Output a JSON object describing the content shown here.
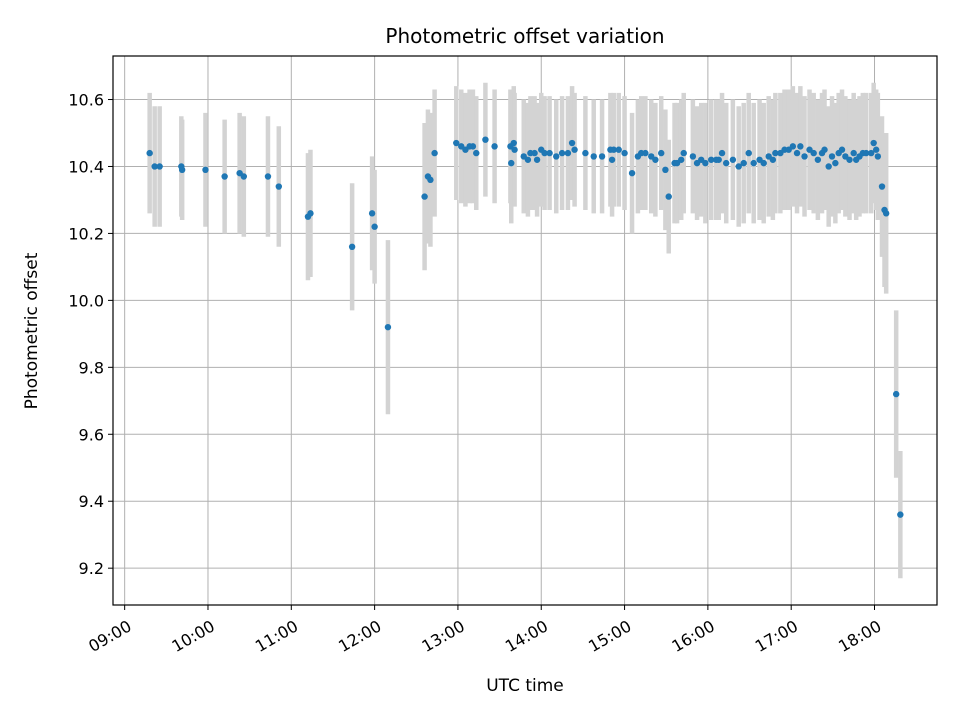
{
  "chart_data": {
    "type": "scatter",
    "title": "Photometric offset variation",
    "xlabel": "UTC time",
    "ylabel": "Photometric offset",
    "x_unit": "hours UTC",
    "xlim": [
      8.86,
      18.75
    ],
    "ylim": [
      9.09,
      10.73
    ],
    "xticks": [
      9,
      10,
      11,
      12,
      13,
      14,
      15,
      16,
      17,
      18
    ],
    "xtick_labels": [
      "09:00",
      "10:00",
      "11:00",
      "12:00",
      "13:00",
      "14:00",
      "15:00",
      "16:00",
      "17:00",
      "18:00"
    ],
    "yticks": [
      9.2,
      9.4,
      9.6,
      9.8,
      10.0,
      10.2,
      10.4,
      10.6
    ],
    "ytick_labels": [
      "9.2",
      "9.4",
      "9.6",
      "9.8",
      "10.0",
      "10.2",
      "10.4",
      "10.6"
    ],
    "grid": true,
    "colors": {
      "marker": "#1f77b4",
      "errorbar": "#d3d3d3",
      "grid": "#b0b0b0"
    },
    "series": [
      {
        "x": [
          9.3,
          9.36,
          9.42,
          9.68,
          9.69,
          9.97,
          10.2,
          10.38,
          10.43,
          10.72,
          10.85,
          11.2,
          11.23,
          11.73,
          11.97,
          12.0,
          12.16,
          12.6,
          12.64,
          12.67,
          12.72,
          12.98,
          13.04,
          13.09,
          13.14,
          13.18,
          13.22,
          13.33,
          13.44,
          13.63,
          13.64,
          13.67,
          13.68,
          13.79,
          13.84,
          13.87,
          13.92,
          13.95,
          14.0,
          14.04,
          14.1,
          14.18,
          14.25,
          14.32,
          14.37,
          14.4,
          14.53,
          14.63,
          14.73,
          14.83,
          14.85,
          14.87,
          14.93,
          15.0,
          15.09,
          15.16,
          15.2,
          15.25,
          15.32,
          15.37,
          15.44,
          15.49,
          15.53,
          15.6,
          15.63,
          15.68,
          15.71,
          15.82,
          15.87,
          15.92,
          15.97,
          16.04,
          16.1,
          16.13,
          16.17,
          16.22,
          16.3,
          16.37,
          16.43,
          16.49,
          16.55,
          16.62,
          16.67,
          16.73,
          16.78,
          16.81,
          16.87,
          16.92,
          16.97,
          17.02,
          17.07,
          17.11,
          17.16,
          17.22,
          17.27,
          17.32,
          17.37,
          17.4,
          17.45,
          17.49,
          17.53,
          17.57,
          17.61,
          17.65,
          17.7,
          17.75,
          17.78,
          17.82,
          17.86,
          17.9,
          17.96,
          17.99,
          18.02,
          18.04,
          18.09,
          18.12,
          18.14,
          18.26,
          18.31
        ],
        "y": [
          10.44,
          10.4,
          10.4,
          10.4,
          10.39,
          10.39,
          10.37,
          10.38,
          10.37,
          10.37,
          10.34,
          10.25,
          10.26,
          10.16,
          10.26,
          10.22,
          9.92,
          10.31,
          10.37,
          10.36,
          10.44,
          10.47,
          10.46,
          10.45,
          10.46,
          10.46,
          10.44,
          10.48,
          10.46,
          10.46,
          10.41,
          10.47,
          10.45,
          10.43,
          10.42,
          10.44,
          10.44,
          10.42,
          10.45,
          10.44,
          10.44,
          10.43,
          10.44,
          10.44,
          10.47,
          10.45,
          10.44,
          10.43,
          10.43,
          10.45,
          10.42,
          10.45,
          10.45,
          10.44,
          10.38,
          10.43,
          10.44,
          10.44,
          10.43,
          10.42,
          10.44,
          10.39,
          10.31,
          10.41,
          10.41,
          10.42,
          10.44,
          10.43,
          10.41,
          10.42,
          10.41,
          10.42,
          10.42,
          10.42,
          10.44,
          10.41,
          10.42,
          10.4,
          10.41,
          10.44,
          10.41,
          10.42,
          10.41,
          10.43,
          10.42,
          10.44,
          10.44,
          10.45,
          10.45,
          10.46,
          10.44,
          10.46,
          10.43,
          10.45,
          10.44,
          10.42,
          10.44,
          10.45,
          10.4,
          10.43,
          10.41,
          10.44,
          10.45,
          10.43,
          10.42,
          10.44,
          10.42,
          10.43,
          10.44,
          10.44,
          10.44,
          10.47,
          10.45,
          10.43,
          10.34,
          10.27,
          10.26,
          9.72,
          9.36
        ],
        "yerr": [
          0.18,
          0.18,
          0.18,
          0.15,
          0.15,
          0.17,
          0.17,
          0.18,
          0.18,
          0.18,
          0.18,
          0.19,
          0.19,
          0.19,
          0.17,
          0.17,
          0.26,
          0.22,
          0.2,
          0.2,
          0.19,
          0.17,
          0.17,
          0.17,
          0.17,
          0.17,
          0.17,
          0.17,
          0.17,
          0.17,
          0.18,
          0.17,
          0.17,
          0.17,
          0.17,
          0.17,
          0.17,
          0.17,
          0.17,
          0.17,
          0.17,
          0.17,
          0.17,
          0.17,
          0.17,
          0.17,
          0.17,
          0.17,
          0.17,
          0.17,
          0.17,
          0.17,
          0.17,
          0.17,
          0.18,
          0.17,
          0.17,
          0.17,
          0.17,
          0.17,
          0.17,
          0.18,
          0.17,
          0.18,
          0.18,
          0.18,
          0.18,
          0.17,
          0.17,
          0.17,
          0.18,
          0.18,
          0.18,
          0.18,
          0.18,
          0.18,
          0.18,
          0.18,
          0.18,
          0.18,
          0.18,
          0.18,
          0.18,
          0.18,
          0.18,
          0.18,
          0.18,
          0.18,
          0.18,
          0.18,
          0.18,
          0.18,
          0.18,
          0.18,
          0.18,
          0.18,
          0.18,
          0.18,
          0.18,
          0.18,
          0.18,
          0.18,
          0.18,
          0.18,
          0.18,
          0.18,
          0.18,
          0.18,
          0.18,
          0.18,
          0.18,
          0.18,
          0.18,
          0.19,
          0.21,
          0.23,
          0.24,
          0.25,
          0.19
        ]
      }
    ]
  }
}
